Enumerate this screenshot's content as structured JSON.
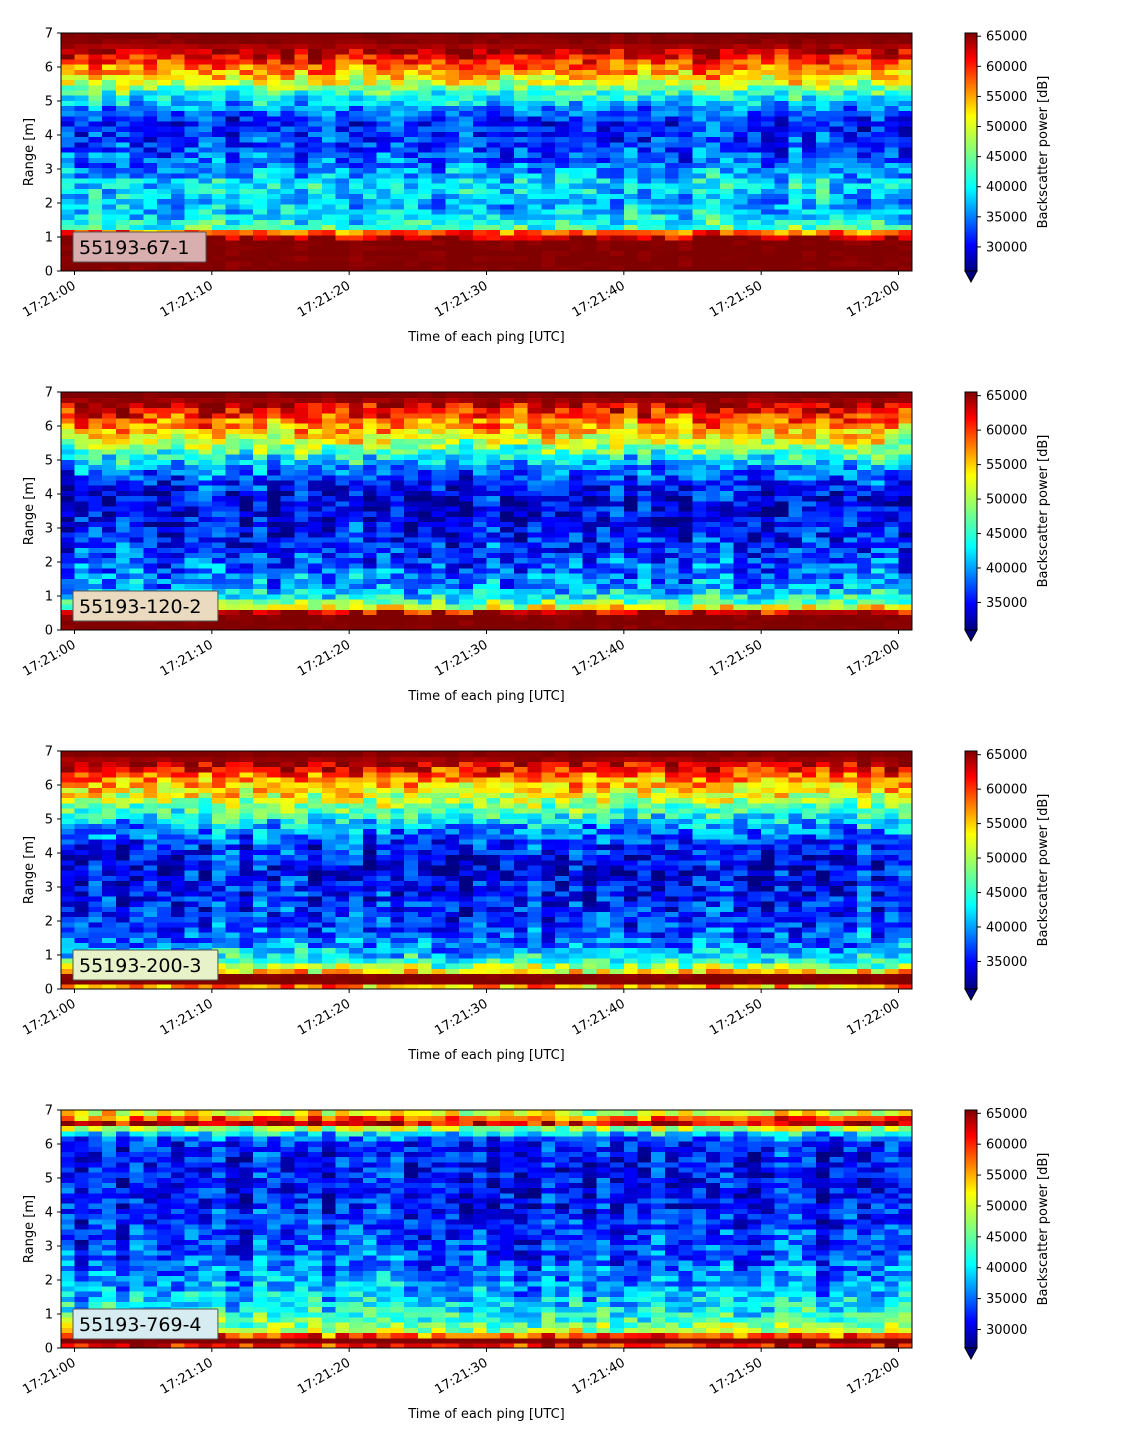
{
  "figure": {
    "xlabel": "Time of each ping [UTC]",
    "ylabel": "Range [m]",
    "cbar_label": "Backscatter power [dB]",
    "x_ticks": [
      "17:21:00",
      "17:21:10",
      "17:21:20",
      "17:21:30",
      "17:21:40",
      "17:21:50",
      "17:22:00"
    ],
    "y_ticks": [
      "0",
      "1",
      "2",
      "3",
      "4",
      "5",
      "6",
      "7"
    ],
    "colormap": "jet"
  },
  "chart_data": [
    {
      "type": "heatmap",
      "label": "55193-67-1",
      "label_box_color": "#d9aeae",
      "xlim": [
        "17:21:00",
        "17:22:00"
      ],
      "ylim": [
        0,
        7
      ],
      "clim": [
        26000,
        65535
      ],
      "colorbar_ticks": [
        "30000",
        "35000",
        "40000",
        "45000",
        "50000",
        "55000",
        "60000",
        "65000"
      ],
      "colorbar_tick_values": [
        30000,
        35000,
        40000,
        45000,
        50000,
        55000,
        60000,
        65000
      ],
      "range_profile": [
        {
          "range": 0.0,
          "value": 65535
        },
        {
          "range": 0.25,
          "value": 65535
        },
        {
          "range": 0.9,
          "value": 65535
        },
        {
          "range": 1.1,
          "value": 60000
        },
        {
          "range": 1.3,
          "value": 43000
        },
        {
          "range": 1.6,
          "value": 40000
        },
        {
          "range": 2.0,
          "value": 38000
        },
        {
          "range": 2.6,
          "value": 40000
        },
        {
          "range": 3.2,
          "value": 35000
        },
        {
          "range": 3.8,
          "value": 33000
        },
        {
          "range": 4.4,
          "value": 32000
        },
        {
          "range": 4.9,
          "value": 38000
        },
        {
          "range": 5.3,
          "value": 44000
        },
        {
          "range": 5.7,
          "value": 52000
        },
        {
          "range": 6.1,
          "value": 58000
        },
        {
          "range": 6.5,
          "value": 63000
        },
        {
          "range": 6.8,
          "value": 65535
        },
        {
          "range": 7.0,
          "value": 65535
        }
      ]
    },
    {
      "type": "heatmap",
      "label": "55193-120-2",
      "label_box_color": "#eadbc0",
      "xlim": [
        "17:21:00",
        "17:22:00"
      ],
      "ylim": [
        0,
        7
      ],
      "clim": [
        31000,
        65535
      ],
      "colorbar_ticks": [
        "35000",
        "40000",
        "45000",
        "50000",
        "55000",
        "60000",
        "65000"
      ],
      "colorbar_tick_values": [
        35000,
        40000,
        45000,
        50000,
        55000,
        60000,
        65000
      ],
      "range_profile": [
        {
          "range": 0.0,
          "value": 65535
        },
        {
          "range": 0.15,
          "value": 65535
        },
        {
          "range": 0.5,
          "value": 65535
        },
        {
          "range": 0.65,
          "value": 53000
        },
        {
          "range": 0.9,
          "value": 45000
        },
        {
          "range": 1.3,
          "value": 40000
        },
        {
          "range": 2.0,
          "value": 38000
        },
        {
          "range": 2.6,
          "value": 36000
        },
        {
          "range": 3.2,
          "value": 35000
        },
        {
          "range": 3.8,
          "value": 34000
        },
        {
          "range": 4.3,
          "value": 36000
        },
        {
          "range": 4.8,
          "value": 40000
        },
        {
          "range": 5.3,
          "value": 47000
        },
        {
          "range": 5.8,
          "value": 54000
        },
        {
          "range": 6.2,
          "value": 58000
        },
        {
          "range": 6.6,
          "value": 63000
        },
        {
          "range": 6.9,
          "value": 65535
        },
        {
          "range": 7.0,
          "value": 65535
        }
      ]
    },
    {
      "type": "heatmap",
      "label": "55193-200-3",
      "label_box_color": "#e8f2c8",
      "xlim": [
        "17:21:00",
        "17:22:00"
      ],
      "ylim": [
        0,
        7
      ],
      "clim": [
        31000,
        65535
      ],
      "colorbar_ticks": [
        "35000",
        "40000",
        "45000",
        "50000",
        "55000",
        "60000",
        "65000"
      ],
      "colorbar_tick_values": [
        35000,
        40000,
        45000,
        50000,
        55000,
        60000,
        65000
      ],
      "range_profile": [
        {
          "range": 0.0,
          "value": 50000
        },
        {
          "range": 0.2,
          "value": 65535
        },
        {
          "range": 0.4,
          "value": 65535
        },
        {
          "range": 0.55,
          "value": 52000
        },
        {
          "range": 0.9,
          "value": 44000
        },
        {
          "range": 1.4,
          "value": 39000
        },
        {
          "range": 2.0,
          "value": 37000
        },
        {
          "range": 2.6,
          "value": 36000
        },
        {
          "range": 3.2,
          "value": 35000
        },
        {
          "range": 3.8,
          "value": 35000
        },
        {
          "range": 4.3,
          "value": 37000
        },
        {
          "range": 4.8,
          "value": 41000
        },
        {
          "range": 5.3,
          "value": 47000
        },
        {
          "range": 5.8,
          "value": 53000
        },
        {
          "range": 6.2,
          "value": 57000
        },
        {
          "range": 6.6,
          "value": 63000
        },
        {
          "range": 6.9,
          "value": 65535
        },
        {
          "range": 7.0,
          "value": 65535
        }
      ]
    },
    {
      "type": "heatmap",
      "label": "55193-769-4",
      "label_box_color": "#d6ecf0",
      "xlim": [
        "17:21:00",
        "17:22:00"
      ],
      "ylim": [
        0,
        7
      ],
      "clim": [
        27000,
        65535
      ],
      "colorbar_ticks": [
        "30000",
        "35000",
        "40000",
        "45000",
        "50000",
        "55000",
        "60000",
        "65000"
      ],
      "colorbar_tick_values": [
        30000,
        35000,
        40000,
        45000,
        50000,
        55000,
        60000,
        65000
      ],
      "range_profile": [
        {
          "range": 0.0,
          "value": 55000
        },
        {
          "range": 0.15,
          "value": 65535
        },
        {
          "range": 0.3,
          "value": 65535
        },
        {
          "range": 0.45,
          "value": 50000
        },
        {
          "range": 0.8,
          "value": 44000
        },
        {
          "range": 1.3,
          "value": 40000
        },
        {
          "range": 2.0,
          "value": 37000
        },
        {
          "range": 2.6,
          "value": 35000
        },
        {
          "range": 3.2,
          "value": 34000
        },
        {
          "range": 3.8,
          "value": 33000
        },
        {
          "range": 4.4,
          "value": 32000
        },
        {
          "range": 5.0,
          "value": 32000
        },
        {
          "range": 5.6,
          "value": 32000
        },
        {
          "range": 6.1,
          "value": 33000
        },
        {
          "range": 6.4,
          "value": 42000
        },
        {
          "range": 6.65,
          "value": 64000
        },
        {
          "range": 6.85,
          "value": 52000
        },
        {
          "range": 7.0,
          "value": 48000
        }
      ]
    }
  ]
}
